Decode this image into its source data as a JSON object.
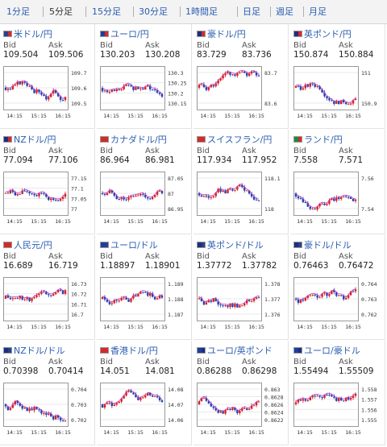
{
  "tabs": [
    {
      "label": "1分足",
      "active": false
    },
    {
      "label": "5分足",
      "active": true
    },
    {
      "label": "15分足",
      "active": false
    },
    {
      "label": "30分足",
      "active": false
    },
    {
      "label": "1時間足",
      "active": false
    },
    {
      "label": "日足",
      "active": false
    },
    {
      "label": "週足",
      "active": false
    },
    {
      "label": "月足",
      "active": false
    }
  ],
  "labels": {
    "bid": "Bid",
    "ask": "Ask"
  },
  "colors": {
    "up": "#d92020",
    "down": "#2440b0",
    "ma": "#c040c0",
    "grid": "#e8e8e8",
    "link": "#2a5db0"
  },
  "cards": [
    {
      "pair": "米ドル/円",
      "flag": [
        "#2a3f8f",
        "#d42a2a"
      ],
      "bid": "109.504",
      "ask": "109.506",
      "yticks": [
        "109.7",
        "109.6",
        "109.5"
      ],
      "xticks": [
        "14:15",
        "15:15",
        "16:15"
      ]
    },
    {
      "pair": "ユーロ/円",
      "flag": [
        "#1b3fa0",
        "#d42a2a"
      ],
      "bid": "130.203",
      "ask": "130.208",
      "yticks": [
        "130.3",
        "130.25",
        "130.2",
        "130.15"
      ],
      "xticks": [
        "14:15",
        "15:15",
        "16:15"
      ]
    },
    {
      "pair": "豪ドル/円",
      "flag": [
        "#1b2f80",
        "#d42a2a"
      ],
      "bid": "83.729",
      "ask": "83.736",
      "yticks": [
        "83.7",
        "83.6"
      ],
      "xticks": [
        "14:15",
        "15:15",
        "16:15"
      ]
    },
    {
      "pair": "英ポンド/円",
      "flag": [
        "#1b2f80",
        "#d42a2a"
      ],
      "bid": "150.874",
      "ask": "150.884",
      "yticks": [
        "151",
        "150.9"
      ],
      "xticks": [
        "14:15",
        "15:15",
        "16:15"
      ]
    },
    {
      "pair": "NZドル/円",
      "flag": [
        "#1b2f80",
        "#d42a2a"
      ],
      "bid": "77.094",
      "ask": "77.106",
      "yticks": [
        "77.15",
        "77.1",
        "77.05",
        "77"
      ],
      "xticks": [
        "14:15",
        "15:15",
        "16:15"
      ]
    },
    {
      "pair": "カナダドル/円",
      "flag": [
        "#d42a2a",
        "#d42a2a"
      ],
      "bid": "86.964",
      "ask": "86.981",
      "yticks": [
        "87.05",
        "87",
        "86.95"
      ],
      "xticks": [
        "14:15",
        "15:15",
        "16:15"
      ]
    },
    {
      "pair": "スイスフラン/円",
      "flag": [
        "#d42a2a",
        "#d42a2a"
      ],
      "bid": "117.934",
      "ask": "117.952",
      "yticks": [
        "118.1",
        "118"
      ],
      "xticks": [
        "14:15",
        "15:15",
        "16:15"
      ]
    },
    {
      "pair": "ランド/円",
      "flag": [
        "#1f8a3a",
        "#d42a2a"
      ],
      "bid": "7.558",
      "ask": "7.571",
      "yticks": [
        "7.56",
        "7.54"
      ],
      "xticks": [
        "14:15",
        "15:15",
        "16:15"
      ]
    },
    {
      "pair": "人民元/円",
      "flag": [
        "#d42a2a",
        "#d42a2a"
      ],
      "bid": "16.689",
      "ask": "16.719",
      "yticks": [
        "16.73",
        "16.72",
        "16.71",
        "16.7"
      ],
      "xticks": [
        "14:15",
        "15:15",
        "16:15"
      ]
    },
    {
      "pair": "ユーロ/ドル",
      "flag": [
        "#1b3fa0",
        "#2a3f8f"
      ],
      "bid": "1.18897",
      "ask": "1.18901",
      "yticks": [
        "1.189",
        "1.188",
        "1.187"
      ],
      "xticks": [
        "14:15",
        "15:15",
        "16:15"
      ]
    },
    {
      "pair": "英ポンド/ドル",
      "flag": [
        "#1b2f80",
        "#2a3f8f"
      ],
      "bid": "1.37772",
      "ask": "1.37782",
      "yticks": [
        "1.378",
        "1.377",
        "1.376"
      ],
      "xticks": [
        "14:15",
        "15:15",
        "16:15"
      ]
    },
    {
      "pair": "豪ドル/ドル",
      "flag": [
        "#1b2f80",
        "#2a3f8f"
      ],
      "bid": "0.76463",
      "ask": "0.76472",
      "yticks": [
        "0.764",
        "0.763",
        "0.762"
      ],
      "xticks": [
        "14:15",
        "15:15",
        "16:15"
      ]
    },
    {
      "pair": "NZドル/ドル",
      "flag": [
        "#1b2f80",
        "#2a3f8f"
      ],
      "bid": "0.70398",
      "ask": "0.70414",
      "yticks": [
        "0.704",
        "0.703",
        "0.702"
      ],
      "xticks": [
        "14:15",
        "15:15",
        "16:15"
      ]
    },
    {
      "pair": "香港ドル/円",
      "flag": [
        "#d42a2a",
        "#d42a2a"
      ],
      "bid": "14.051",
      "ask": "14.081",
      "yticks": [
        "14.08",
        "14.07",
        "14.06"
      ],
      "xticks": [
        "14:15",
        "15:15",
        "16:15"
      ]
    },
    {
      "pair": "ユーロ/英ポンド",
      "flag": [
        "#1b3fa0",
        "#1b2f80"
      ],
      "bid": "0.86288",
      "ask": "0.86298",
      "yticks": [
        "0.863",
        "0.8628",
        "0.8626",
        "0.8624",
        "0.8622"
      ],
      "xticks": [
        "14:15",
        "15:15",
        "16:15"
      ]
    },
    {
      "pair": "ユーロ/豪ドル",
      "flag": [
        "#1b3fa0",
        "#1b2f80"
      ],
      "bid": "1.55494",
      "ask": "1.55509",
      "yticks": [
        "1.558",
        "1.557",
        "1.556",
        "1.555"
      ],
      "xticks": [
        "14:15",
        "15:15",
        "16:15"
      ]
    }
  ]
}
